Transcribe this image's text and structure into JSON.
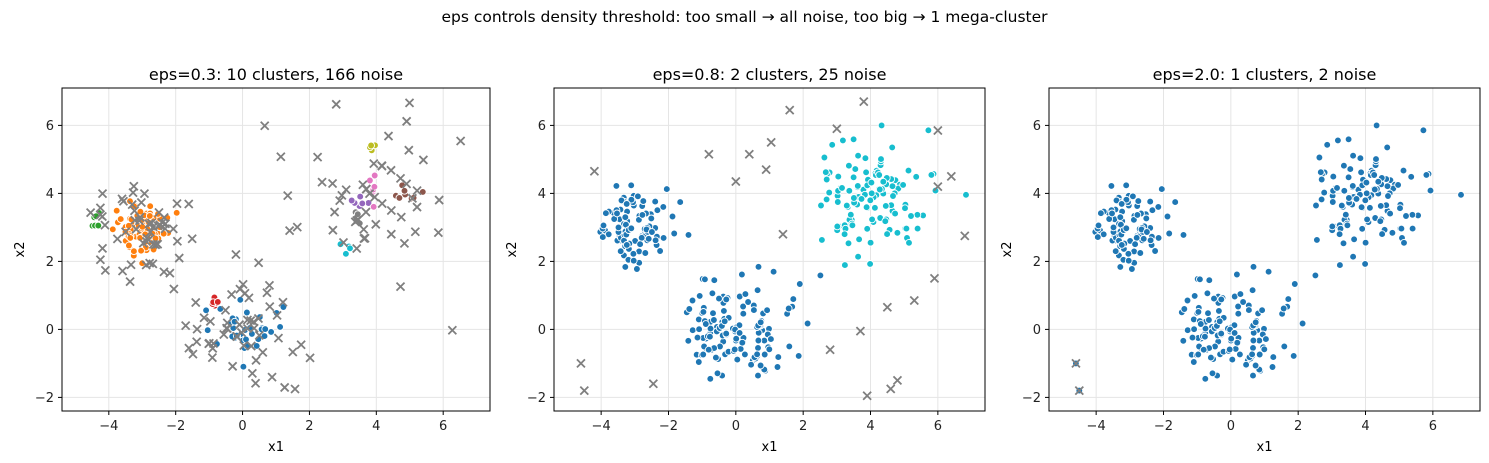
{
  "suptitle": "eps controls density threshold: too small → all noise, too big → 1 mega-cluster",
  "chart_data": [
    {
      "type": "scatter",
      "title": "eps=0.3: 10 clusters, 166 noise",
      "xlabel": "x1",
      "ylabel": "x2",
      "xlim": [
        -5.4,
        7.4
      ],
      "ylim": [
        -2.4,
        7.1
      ],
      "xticks": [
        -4,
        -2,
        0,
        2,
        4,
        6
      ],
      "yticks": [
        -2,
        0,
        2,
        4,
        6
      ],
      "grid": true,
      "noise_color": "#7f7f7f",
      "clusters": [
        {
          "color": "#1f77b4",
          "center": [
            0.0,
            0.0
          ],
          "spread": [
            0.5,
            0.35
          ],
          "count": 38
        },
        {
          "color": "#ff7f0e",
          "center": [
            -3.0,
            2.95
          ],
          "spread": [
            0.4,
            0.35
          ],
          "count": 90
        },
        {
          "color": "#2ca02c",
          "center": [
            -4.4,
            3.2
          ],
          "spread": [
            0.08,
            0.1
          ],
          "count": 6
        },
        {
          "color": "#d62728",
          "center": [
            -0.8,
            0.75
          ],
          "spread": [
            0.08,
            0.1
          ],
          "count": 6
        },
        {
          "color": "#9467bd",
          "center": [
            3.6,
            3.75
          ],
          "spread": [
            0.25,
            0.1
          ],
          "count": 7
        },
        {
          "color": "#8c564b",
          "center": [
            4.9,
            3.95
          ],
          "spread": [
            0.2,
            0.12
          ],
          "count": 8
        },
        {
          "color": "#e377c2",
          "center": [
            3.9,
            4.2
          ],
          "spread": [
            0.08,
            0.3
          ],
          "count": 6
        },
        {
          "color": "#bcbd22",
          "center": [
            3.9,
            5.3
          ],
          "spread": [
            0.05,
            0.07
          ],
          "count": 4
        },
        {
          "color": "#17becf",
          "center": [
            3.1,
            2.35
          ],
          "spread": [
            0.12,
            0.08
          ],
          "count": 4
        },
        {
          "color": "#7f7f7f",
          "center": [
            3.4,
            3.3
          ],
          "spread": [
            0.1,
            0.1
          ],
          "count": 4
        }
      ],
      "noise_count": 166
    },
    {
      "type": "scatter",
      "title": "eps=0.8: 2 clusters, 25 noise",
      "xlabel": "x1",
      "ylabel": "x2",
      "xlim": [
        -5.4,
        7.4
      ],
      "ylim": [
        -2.4,
        7.1
      ],
      "xticks": [
        -4,
        -2,
        0,
        2,
        4,
        6
      ],
      "yticks": [
        -2,
        0,
        2,
        4,
        6
      ],
      "grid": true,
      "noise_color": "#7f7f7f",
      "clusters": [
        {
          "color": "#1f77b4",
          "center": [
            0.0,
            0.0
          ],
          "spread": [
            0.8,
            0.7
          ],
          "count": 130
        },
        {
          "color": "#1f77b4",
          "center": [
            -3.0,
            3.0
          ],
          "spread": [
            0.6,
            0.6
          ],
          "count": 100
        },
        {
          "color": "#17becf",
          "center": [
            4.0,
            3.9
          ],
          "spread": [
            0.9,
            0.9
          ],
          "count": 120
        }
      ],
      "noise_points": [
        [
          -4.6,
          -1.0
        ],
        [
          -4.5,
          -1.8
        ],
        [
          -4.2,
          4.65
        ],
        [
          -2.45,
          -1.6
        ],
        [
          -0.8,
          5.15
        ],
        [
          0.0,
          4.35
        ],
        [
          0.4,
          5.15
        ],
        [
          0.9,
          4.7
        ],
        [
          1.05,
          5.5
        ],
        [
          1.4,
          2.8
        ],
        [
          1.6,
          6.45
        ],
        [
          2.8,
          -0.6
        ],
        [
          3.0,
          5.9
        ],
        [
          3.8,
          6.7
        ],
        [
          3.7,
          -0.05
        ],
        [
          3.9,
          -1.95
        ],
        [
          4.5,
          0.65
        ],
        [
          4.6,
          -1.75
        ],
        [
          4.8,
          -1.5
        ],
        [
          5.3,
          0.85
        ],
        [
          5.9,
          1.5
        ],
        [
          6.0,
          4.2
        ],
        [
          6.0,
          5.85
        ],
        [
          6.4,
          4.5
        ],
        [
          6.8,
          2.75
        ]
      ]
    },
    {
      "type": "scatter",
      "title": "eps=2.0: 1 clusters, 2 noise",
      "xlabel": "x1",
      "ylabel": "x2",
      "xlim": [
        -5.4,
        7.4
      ],
      "ylim": [
        -2.4,
        7.1
      ],
      "xticks": [
        -4,
        -2,
        0,
        2,
        4,
        6
      ],
      "yticks": [
        -2,
        0,
        2,
        4,
        6
      ],
      "grid": true,
      "noise_color": "#7f7f7f",
      "clusters": [
        {
          "color": "#1f77b4",
          "center": [
            0.0,
            0.0
          ],
          "spread": [
            0.8,
            0.7
          ],
          "count": 130
        },
        {
          "color": "#1f77b4",
          "center": [
            -3.0,
            3.0
          ],
          "spread": [
            0.6,
            0.6
          ],
          "count": 100
        },
        {
          "color": "#1f77b4",
          "center": [
            4.0,
            3.9
          ],
          "spread": [
            0.9,
            0.9
          ],
          "count": 120
        }
      ],
      "noise_points": [
        [
          -4.6,
          -1.0
        ],
        [
          -4.5,
          -1.8
        ]
      ]
    }
  ]
}
